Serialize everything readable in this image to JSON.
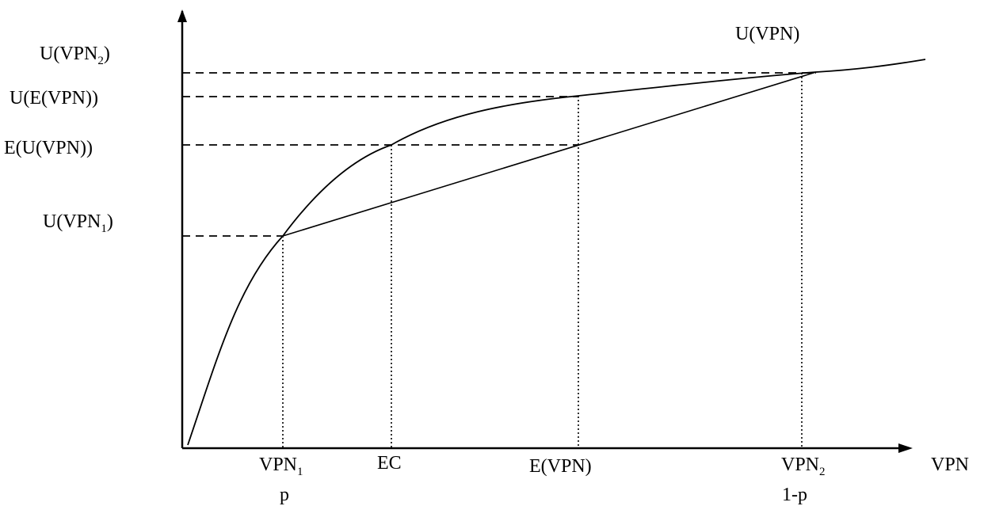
{
  "curve_label": "U(VPN)",
  "x_axis_label": "VPN",
  "y_labels": {
    "u_vpn2": {
      "main": "U(VPN",
      "sub": "2",
      "tail": ")"
    },
    "u_e_vpn": {
      "main": "U(E(VPN))"
    },
    "e_u_vpn": {
      "main": "E(U(VPN))"
    },
    "u_vpn1": {
      "main": "U(VPN",
      "sub": "1",
      "tail": ")"
    }
  },
  "x_labels": {
    "vpn1": {
      "main": "VPN",
      "sub": "1",
      "prob": "p"
    },
    "ec": {
      "main": "EC"
    },
    "e_vpn": {
      "main": "E(VPN)"
    },
    "vpn2": {
      "main": "VPN",
      "sub": "2",
      "prob": "1-p"
    }
  }
}
